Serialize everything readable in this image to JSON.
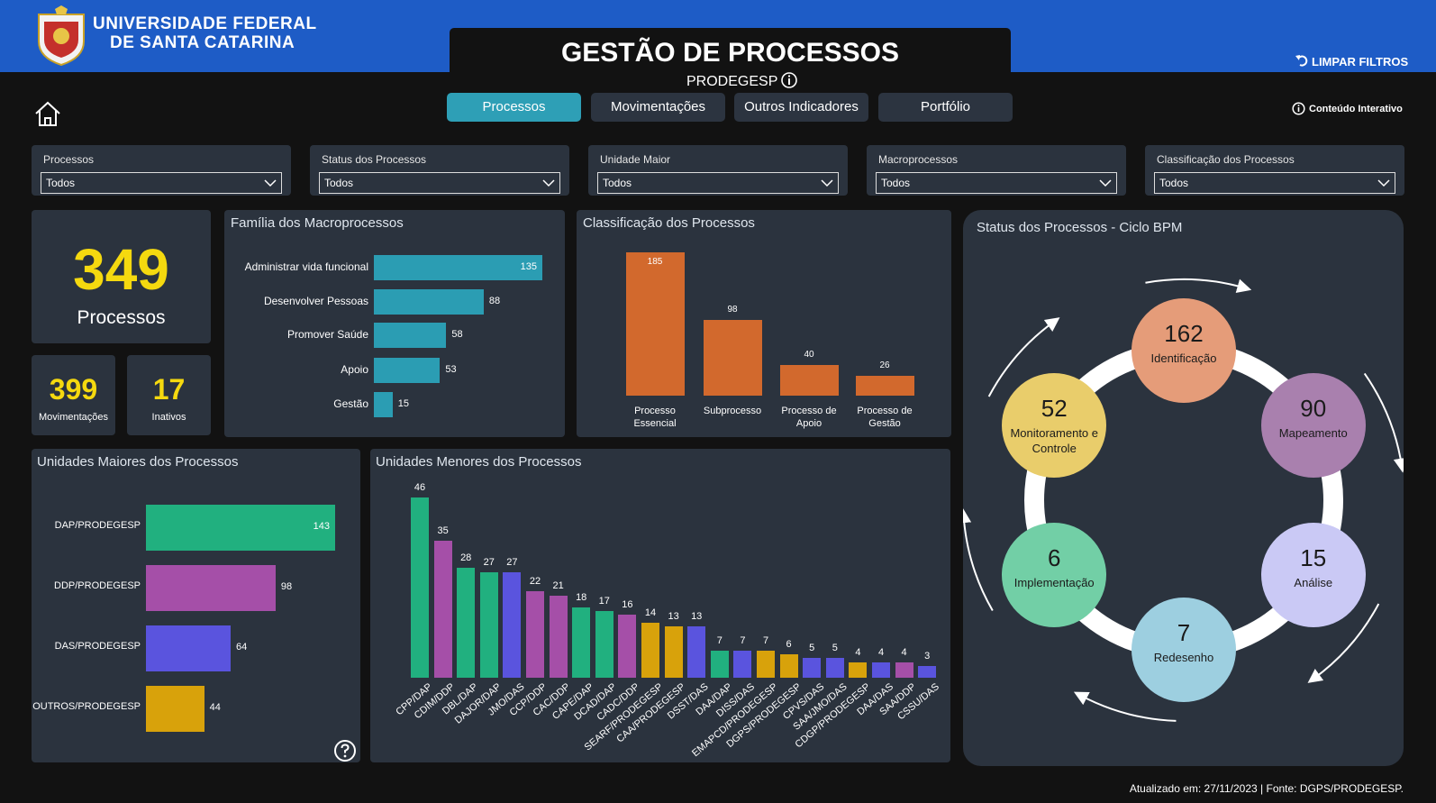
{
  "header": {
    "university": [
      "UNIVERSIDADE FEDERAL",
      "DE SANTA CATARINA"
    ],
    "title": "GESTÃO DE PROCESSOS",
    "subtitle": "PRODEGESP",
    "clear_filters": "LIMPAR FILTROS",
    "interactive": "Conteúdo Interativo"
  },
  "tabs": [
    "Processos",
    "Movimentações",
    "Outros Indicadores",
    "Portfólio"
  ],
  "filters": [
    {
      "label": "Processos",
      "value": "Todos"
    },
    {
      "label": "Status dos Processos",
      "value": "Todos"
    },
    {
      "label": "Unidade Maior",
      "value": "Todos"
    },
    {
      "label": "Macroprocessos",
      "value": "Todos"
    },
    {
      "label": "Classificação dos Processos",
      "value": "Todos"
    }
  ],
  "kpis": [
    {
      "value": 349,
      "label": "Processos"
    },
    {
      "value": 399,
      "label": "Movimentações"
    },
    {
      "value": 17,
      "label": "Inativos"
    }
  ],
  "chart_data": [
    {
      "type": "bar",
      "orientation": "horizontal",
      "title": "Família dos Macroprocessos",
      "categories": [
        "Administrar vida funcional",
        "Desenvolver Pessoas",
        "Promover Saúde",
        "Apoio",
        "Gestão"
      ],
      "values": [
        135,
        88,
        58,
        53,
        15
      ],
      "color": "#2b9db3"
    },
    {
      "type": "bar",
      "orientation": "vertical",
      "title": "Classificação dos Processos",
      "categories": [
        "Processo Essencial",
        "Subprocesso",
        "Processo de Apoio",
        "Processo de Gestão"
      ],
      "values": [
        185,
        98,
        40,
        26
      ],
      "color": "#d2692d"
    },
    {
      "type": "bar",
      "orientation": "horizontal",
      "title": "Unidades Maiores dos Processos",
      "categories": [
        "DAP/PRODEGESP",
        "DDP/PRODEGESP",
        "DAS/PRODEGESP",
        "OUTROS/PRODEGESP"
      ],
      "values": [
        143,
        98,
        64,
        44
      ],
      "colors": [
        "#21b07f",
        "#a54fa8",
        "#5a54de",
        "#d8a20b"
      ]
    },
    {
      "type": "bar",
      "orientation": "vertical",
      "title": "Unidades Menores dos Processos",
      "categories": [
        "CPP/DAP",
        "CDIM/DDP",
        "DBL/DAP",
        "DAJOR/DAP",
        "JMO/DAS",
        "CCP/DDP",
        "CAC/DDP",
        "CAPE/DAP",
        "DCAD/DAP",
        "CADC/DDP",
        "SEARF/PRODEGESP",
        "CAA/PRODEGESP",
        "DSST/DAS",
        "DAA/DAP",
        "DISS/DAS",
        "EMAPCD/PRODEGESP",
        "DGPS/PRODEGESP",
        "CPVS/DAS",
        "SAA/JMO/DAS",
        "CDGP/PRODEGESP",
        "DAA/DAS",
        "SAA/DDP",
        "CSSU/DAS"
      ],
      "values": [
        46,
        35,
        28,
        27,
        27,
        22,
        21,
        18,
        17,
        16,
        14,
        13,
        13,
        7,
        7,
        7,
        6,
        5,
        5,
        4,
        4,
        4,
        3
      ],
      "colors": [
        "#21b07f",
        "#a54fa8",
        "#21b07f",
        "#21b07f",
        "#5a54de",
        "#a54fa8",
        "#a54fa8",
        "#21b07f",
        "#21b07f",
        "#a54fa8",
        "#d8a20b",
        "#d8a20b",
        "#5a54de",
        "#21b07f",
        "#5a54de",
        "#d8a20b",
        "#d8a20b",
        "#5a54de",
        "#5a54de",
        "#d8a20b",
        "#5a54de",
        "#a54fa8",
        "#5a54de"
      ]
    }
  ],
  "bpm": {
    "title": "Status dos Processos - Ciclo BPM",
    "nodes": [
      {
        "value": 162,
        "label": "Identificação",
        "color": "#e59c79"
      },
      {
        "value": 90,
        "label": "Mapeamento",
        "color": "#a980ae"
      },
      {
        "value": 15,
        "label": "Análise",
        "color": "#cac9f5"
      },
      {
        "value": 7,
        "label": "Redesenho",
        "color": "#9dcfe0"
      },
      {
        "value": 6,
        "label": "Implementação",
        "color": "#72cfa6"
      },
      {
        "value": 52,
        "label": "Monitoramento e Controle",
        "color": "#e9cd6b"
      }
    ]
  },
  "footer": "Atualizado em:  27/11/2023 | Fonte: DGPS/PRODEGESP."
}
